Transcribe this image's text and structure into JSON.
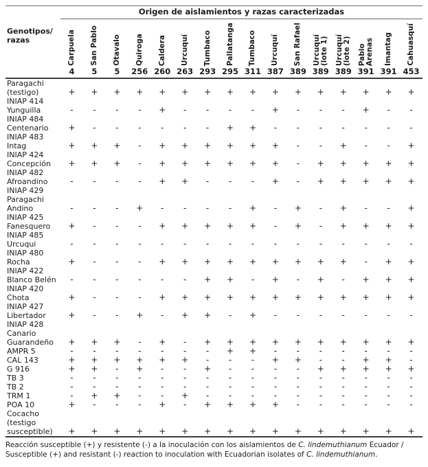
{
  "table": {
    "title": "Origen de aislamientos y razas caracterizadas",
    "row_header": "Genotipos/\nrazas",
    "columns": [
      {
        "origin": "Carpuela",
        "race": "4"
      },
      {
        "origin": "San Pablo",
        "race": "5"
      },
      {
        "origin": "Otavalo",
        "race": "5"
      },
      {
        "origin": "Quiroga",
        "race": "256"
      },
      {
        "origin": "Caldera",
        "race": "260"
      },
      {
        "origin": "Urcuquí",
        "race": "263"
      },
      {
        "origin": "Tumbaco",
        "race": "293"
      },
      {
        "origin": "Pallatanga",
        "race": "295"
      },
      {
        "origin": "Tumbaco",
        "race": "311"
      },
      {
        "origin": "Urcuquí",
        "race": "387"
      },
      {
        "origin": "San Rafael",
        "race": "389"
      },
      {
        "origin": "Urcuquí\n(lote 1)",
        "race": "389"
      },
      {
        "origin": "Urcuquí\n(lote 2)",
        "race": "389"
      },
      {
        "origin": "Pablo\nArenas",
        "race": "391"
      },
      {
        "origin": "Imantag",
        "race": "391"
      },
      {
        "origin": "Cahuasquí",
        "race": "453"
      }
    ],
    "rows": [
      {
        "genotype": "Paragachi\n(testigo)",
        "reactions": [
          "+",
          "+",
          "+",
          "+",
          "+",
          "+",
          "+",
          "+",
          "+",
          "+",
          "+",
          "+",
          "+",
          "+",
          "+",
          "+"
        ]
      },
      {
        "genotype": "INIAP 414\nYunguilla",
        "reactions": [
          "-",
          "-",
          "-",
          "-",
          "+",
          "-",
          "-",
          "-",
          "-",
          "+",
          "-",
          "-",
          "-",
          "+",
          "-",
          "-"
        ]
      },
      {
        "genotype": "INIAP 484\nCentenario",
        "reactions": [
          "+",
          "-",
          "-",
          "-",
          "-",
          "-",
          "-",
          "+",
          "+",
          "-",
          "-",
          "-",
          "-",
          "-",
          "-",
          "-"
        ]
      },
      {
        "genotype": "INIAP 483\nIntag",
        "reactions": [
          "+",
          "+",
          "+",
          "-",
          "+",
          "+",
          "+",
          "+",
          "+",
          "+",
          "-",
          "-",
          "+",
          "-",
          "-",
          "+"
        ]
      },
      {
        "genotype": "INIAP 424\nConcepción",
        "reactions": [
          "+",
          "+",
          "+",
          "-",
          "+",
          "+",
          "+",
          "+",
          "+",
          "+",
          "-",
          "+",
          "+",
          "+",
          "+",
          "+"
        ]
      },
      {
        "genotype": "INIAP 482\nAfroandino",
        "reactions": [
          "-",
          "-",
          "-",
          "-",
          "+",
          "+",
          "-",
          "-",
          "-",
          "+",
          "-",
          "+",
          "+",
          "+",
          "+",
          "+"
        ]
      },
      {
        "genotype": "INIAP 429\nParagachi\nAndino",
        "reactions": [
          "-",
          "-",
          "-",
          "+",
          "-",
          "-",
          "-",
          "-",
          "+",
          "-",
          "+",
          "-",
          "+",
          "-",
          "-",
          "+"
        ]
      },
      {
        "genotype": "INIAP 425\nFanesquero",
        "reactions": [
          "+",
          "-",
          "-",
          "-",
          "+",
          "+",
          "+",
          "+",
          "+",
          "-",
          "+",
          "-",
          "+",
          "+",
          "+",
          "+"
        ]
      },
      {
        "genotype": "INIAP 485\nUrcuqui",
        "reactions": [
          "-",
          "-",
          "-",
          "-",
          "-",
          "-",
          "-",
          "-",
          "-",
          "-",
          "-",
          "-",
          "-",
          "-",
          "-",
          "-"
        ]
      },
      {
        "genotype": "INIAP 480\nRocha",
        "reactions": [
          "+",
          "-",
          "-",
          "-",
          "+",
          "+",
          "+",
          "+",
          "+",
          "+",
          "+",
          "+",
          "+",
          "-",
          "+",
          "+"
        ]
      },
      {
        "genotype": "INIAP 422\nBlanco Belén",
        "reactions": [
          "-",
          "-",
          "-",
          "-",
          "-",
          "-",
          "+",
          "+",
          "-",
          "+",
          "-",
          "+",
          "-",
          "+",
          "+",
          "+"
        ]
      },
      {
        "genotype": "INIAP 420\nChota",
        "reactions": [
          "+",
          "-",
          "-",
          "-",
          "+",
          "+",
          "+",
          "+",
          "+",
          "+",
          "+",
          "+",
          "+",
          "+",
          "+",
          "+"
        ]
      },
      {
        "genotype": "INIAP 427\nLibertador",
        "reactions": [
          "+",
          "-",
          "-",
          "+",
          "-",
          "+",
          "+",
          "-",
          "+",
          "-",
          "-",
          "-",
          "-",
          "-",
          "-",
          "-"
        ]
      },
      {
        "genotype": "INIAP 428\nCanario\nGuarandeño",
        "reactions": [
          "+",
          "+",
          "+",
          "-",
          "+",
          "-",
          "+",
          "+",
          "+",
          "+",
          "+",
          "+",
          "+",
          "+",
          "+",
          "+"
        ]
      },
      {
        "genotype": "AMPR 5",
        "reactions": [
          "-",
          "-",
          "-",
          "-",
          "-",
          "-",
          "-",
          "+",
          "+",
          "-",
          "-",
          "-",
          "-",
          "-",
          "-",
          "-"
        ]
      },
      {
        "genotype": "CAL 143",
        "reactions": [
          "+",
          "+",
          "+",
          "+",
          "+",
          "+",
          "-",
          "-",
          "-",
          "+",
          "+",
          "-",
          "-",
          "+",
          "+",
          "-"
        ]
      },
      {
        "genotype": "G 916",
        "reactions": [
          "+",
          "+",
          "-",
          "+",
          "-",
          "-",
          "+",
          "-",
          "-",
          "-",
          "-",
          "+",
          "+",
          "+",
          "+",
          "+"
        ]
      },
      {
        "genotype": "TB 3",
        "reactions": [
          "-",
          "-",
          "-",
          "-",
          "-",
          "-",
          "-",
          "-",
          "-",
          "-",
          "-",
          "-",
          "-",
          "-",
          "-",
          "-"
        ]
      },
      {
        "genotype": "TB 2",
        "reactions": [
          "-",
          "-",
          "-",
          "-",
          "-",
          "-",
          "-",
          "-",
          "-",
          "-",
          "-",
          "-",
          "-",
          "-",
          "-",
          "-"
        ]
      },
      {
        "genotype": "TRM 1",
        "reactions": [
          "-",
          "+",
          "+",
          "-",
          "-",
          "+",
          "-",
          "-",
          "-",
          "-",
          "-",
          "-",
          "-",
          "-",
          "-",
          "-"
        ]
      },
      {
        "genotype": "POA 10",
        "reactions": [
          "+",
          "-",
          "-",
          "-",
          "+",
          "-",
          "+",
          "+",
          "+",
          "+",
          "-",
          "-",
          "-",
          "-",
          "-",
          "-"
        ]
      },
      {
        "genotype": "Cocacho\n(testigo\nsusceptible)",
        "reactions": [
          "+",
          "+",
          "+",
          "+",
          "+",
          "+",
          "+",
          "+",
          "+",
          "+",
          "+",
          "+",
          "+",
          "+",
          "+",
          "+"
        ]
      }
    ]
  },
  "footnote_parts": [
    {
      "text": "Reacción susceptible (+) y resistente (-) a la inoculación con los aislamientos de ",
      "italic": false
    },
    {
      "text": "C. lindemuthianum",
      "italic": true
    },
    {
      "text": " Ecuador / Susceptible (+) and resistant (-) reaction to inoculation with Ecuadorian isolates of ",
      "italic": false
    },
    {
      "text": "C. lindemuthianum",
      "italic": true
    },
    {
      "text": ".",
      "italic": false
    }
  ]
}
